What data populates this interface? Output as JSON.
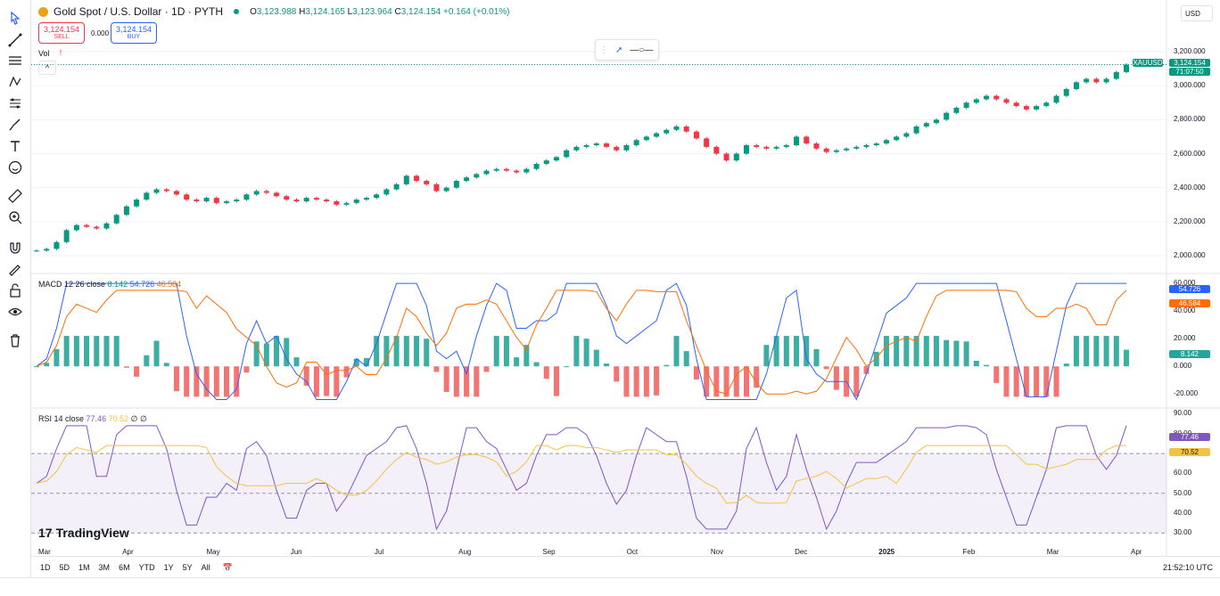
{
  "symbol": {
    "title": "Gold Spot / U.S. Dollar · 1D · PYTH",
    "ohlc": {
      "o_label": "O",
      "o": "3,123.988",
      "h_label": "H",
      "h": "3,124.165",
      "l_label": "L",
      "l": "3,123.964",
      "c_label": "C",
      "c": "3,124.154",
      "change": "+0.164 (+0.01%)"
    }
  },
  "trade": {
    "sell_value": "3,124.154",
    "sell_label": "SELL",
    "spread": "0.000",
    "buy_value": "3,124.154",
    "buy_label": "BUY"
  },
  "currency": "USD",
  "panes": {
    "vol_label": "Vol",
    "macd": {
      "label": "MACD 12 26 close",
      "v1": "8.142",
      "v2": "54.726",
      "v3": "46.584"
    },
    "rsi": {
      "label": "RSI 14 close",
      "v1": "77.46",
      "v2": "70.52",
      "v3": "∅ ∅"
    }
  },
  "price_axis": [
    "3,200.000",
    "3,000.000",
    "2,800.000",
    "2,600.000",
    "2,400.000",
    "2,200.000",
    "2,000.000"
  ],
  "macd_axis": [
    "60.000",
    "40.000",
    "20.000",
    "0.000",
    "-20.000"
  ],
  "rsi_axis": [
    "90.00",
    "80.00",
    "70.00",
    "60.00",
    "50.00",
    "40.00",
    "30.00"
  ],
  "tags": {
    "symbol": "XAUUSD",
    "price": "3,124.154",
    "countdown": "71:07:50",
    "macd_a": "54.726",
    "macd_b": "46.584",
    "macd_hist": "8.142",
    "rsi_a": "77.46",
    "rsi_b": "70.52"
  },
  "time_axis": [
    "Mar",
    "Apr",
    "May",
    "Jun",
    "Jul",
    "Aug",
    "Sep",
    "Oct",
    "Nov",
    "Dec",
    "2025",
    "Feb",
    "Mar",
    "Apr"
  ],
  "timeframes": [
    "1D",
    "5D",
    "1M",
    "3M",
    "6M",
    "YTD",
    "1Y",
    "5Y",
    "All"
  ],
  "clock": "21:52:10 UTC",
  "brand": "TradingView",
  "colors": {
    "up": "#089981",
    "down": "#f23645",
    "macd": "#2962ff",
    "signal": "#ff6d00",
    "rsi": "#7e57c2",
    "rsi_ma": "#f5c242",
    "accent": "#2962ff"
  },
  "chart_data": {
    "type": "candlestick",
    "x_range": [
      "2024-03-01",
      "2025-04-01"
    ],
    "y_range": [
      2000,
      3200
    ],
    "close_path": [
      2030,
      2040,
      2080,
      2150,
      2180,
      2170,
      2160,
      2190,
      2240,
      2290,
      2330,
      2370,
      2390,
      2380,
      2360,
      2330,
      2320,
      2340,
      2310,
      2320,
      2330,
      2360,
      2380,
      2370,
      2350,
      2330,
      2320,
      2340,
      2330,
      2320,
      2300,
      2310,
      2330,
      2340,
      2360,
      2390,
      2420,
      2470,
      2440,
      2420,
      2380,
      2400,
      2440,
      2460,
      2480,
      2500,
      2510,
      2500,
      2490,
      2510,
      2540,
      2560,
      2580,
      2620,
      2640,
      2650,
      2660,
      2640,
      2620,
      2650,
      2680,
      2700,
      2720,
      2740,
      2760,
      2730,
      2690,
      2640,
      2600,
      2560,
      2600,
      2650,
      2640,
      2630,
      2640,
      2650,
      2700,
      2660,
      2630,
      2610,
      2620,
      2630,
      2640,
      2650,
      2660,
      2680,
      2700,
      2720,
      2760,
      2780,
      2800,
      2840,
      2870,
      2900,
      2920,
      2940,
      2920,
      2900,
      2880,
      2860,
      2880,
      2900,
      2940,
      2980,
      3020,
      3040,
      3020,
      3040,
      3080,
      3124
    ],
    "last_close": 3124.154,
    "macd_line_last": 54.726,
    "signal_last": 46.584,
    "histogram_last": 8.142,
    "rsi_last": 77.46,
    "rsi_ma_last": 70.52,
    "rsi_bands": [
      70,
      50,
      30
    ]
  }
}
